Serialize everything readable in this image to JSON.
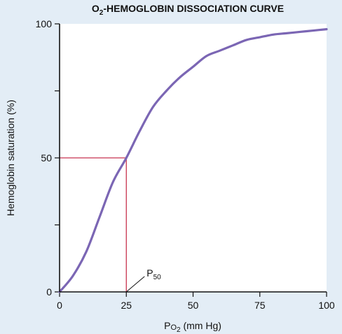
{
  "chart_data": {
    "type": "line",
    "title_prefix": "O",
    "title_sub": "2",
    "title_rest": "-HEMOGLOBIN DISSOCIATION CURVE",
    "xlabel_prefix": "P",
    "xlabel_o": "O",
    "xlabel_sub": "2",
    "xlabel_rest": " (mm Hg)",
    "ylabel": "Hemoglobin saturation (%)",
    "xlim": [
      0,
      100
    ],
    "ylim": [
      0,
      100
    ],
    "x_ticks": [
      0,
      25,
      50,
      75,
      100
    ],
    "x_tick_labels": [
      "0",
      "25",
      "50",
      "75",
      "100"
    ],
    "y_ticks": [
      0,
      25,
      50,
      75,
      100
    ],
    "y_tick_labels": [
      "0",
      "",
      "50",
      "",
      "100"
    ],
    "series": [
      {
        "x": [
          0,
          5,
          10,
          15,
          20,
          25,
          30,
          35,
          40,
          45,
          50,
          55,
          60,
          65,
          70,
          75,
          80,
          85,
          90,
          95,
          100
        ],
        "values": [
          0,
          6,
          15,
          28,
          41,
          50,
          60,
          69,
          75,
          80,
          84,
          88,
          90,
          92,
          94,
          95,
          96,
          96.5,
          97,
          97.5,
          98
        ],
        "color": "#7b66b4"
      }
    ],
    "p50_line": {
      "x": 25,
      "y": 50,
      "color": "#c8334f"
    },
    "annotation": {
      "prefix": "P",
      "sub": "50",
      "target_x": 25,
      "target_y": 0
    }
  }
}
